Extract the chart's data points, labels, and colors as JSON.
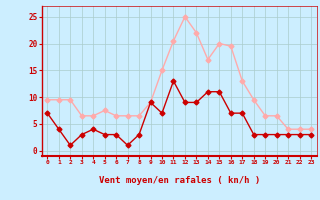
{
  "x": [
    0,
    1,
    2,
    3,
    4,
    5,
    6,
    7,
    8,
    9,
    10,
    11,
    12,
    13,
    14,
    15,
    16,
    17,
    18,
    19,
    20,
    21,
    22,
    23
  ],
  "wind_avg": [
    7,
    4,
    1,
    3,
    4,
    3,
    3,
    1,
    3,
    9,
    7,
    13,
    9,
    9,
    11,
    11,
    7,
    7,
    3,
    3,
    3,
    3,
    3,
    3
  ],
  "wind_gust": [
    9.5,
    9.5,
    9.5,
    6.5,
    6.5,
    7.5,
    6.5,
    6.5,
    6.5,
    9,
    15,
    20.5,
    25,
    22,
    17,
    20,
    19.5,
    13,
    9.5,
    6.5,
    6.5,
    4,
    4,
    4
  ],
  "avg_color": "#cc0000",
  "gust_color": "#ffaaaa",
  "bg_color": "#cceeff",
  "grid_color": "#aacccc",
  "xlabel": "Vent moyen/en rafales ( kn/h )",
  "xlabel_color": "#cc0000",
  "ylabel_ticks": [
    0,
    5,
    10,
    15,
    20,
    25
  ],
  "xlim": [
    -0.5,
    23.5
  ],
  "ylim": [
    -1,
    27
  ],
  "figsize": [
    3.2,
    2.0
  ],
  "dpi": 100
}
